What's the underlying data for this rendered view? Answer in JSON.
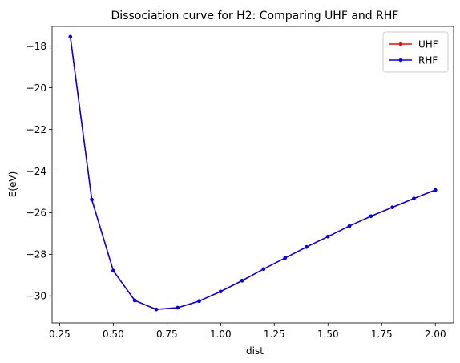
{
  "chart_data": {
    "type": "line",
    "title": "Dissociation curve for H2: Comparing UHF and RHF",
    "xlabel": "dist",
    "ylabel": "E(eV)",
    "xlim": [
      0.215,
      2.085
    ],
    "ylim": [
      -31.3,
      -17.05
    ],
    "xticks": [
      0.25,
      0.5,
      0.75,
      1.0,
      1.25,
      1.5,
      1.75,
      2.0
    ],
    "xtick_labels": [
      "0.25",
      "0.50",
      "0.75",
      "1.00",
      "1.25",
      "1.50",
      "1.75",
      "2.00"
    ],
    "yticks": [
      -18,
      -20,
      -22,
      -24,
      -26,
      -28,
      -30
    ],
    "ytick_labels": [
      "−18",
      "−20",
      "−22",
      "−24",
      "−26",
      "−28",
      "−30"
    ],
    "grid": false,
    "legend_position": "top-right",
    "x": [
      0.3,
      0.4,
      0.5,
      0.6,
      0.7,
      0.8,
      0.9,
      1.0,
      1.1,
      1.2,
      1.3,
      1.4,
      1.5,
      1.6,
      1.7,
      1.8,
      1.9,
      2.0
    ],
    "series": [
      {
        "name": "UHF",
        "color": "#ff0000",
        "values": [
          -17.55,
          -25.37,
          -28.79,
          -30.22,
          -30.65,
          -30.57,
          -30.25,
          -29.79,
          -29.27,
          -28.71,
          -28.18,
          -27.65,
          -27.15,
          -26.64,
          -26.17,
          -25.74,
          -25.32,
          -24.91
        ]
      },
      {
        "name": "RHF",
        "color": "#0000ff",
        "values": [
          -17.55,
          -25.37,
          -28.79,
          -30.22,
          -30.65,
          -30.57,
          -30.25,
          -29.79,
          -29.27,
          -28.71,
          -28.18,
          -27.65,
          -27.15,
          -26.64,
          -26.17,
          -25.74,
          -25.32,
          -24.91
        ]
      }
    ]
  }
}
